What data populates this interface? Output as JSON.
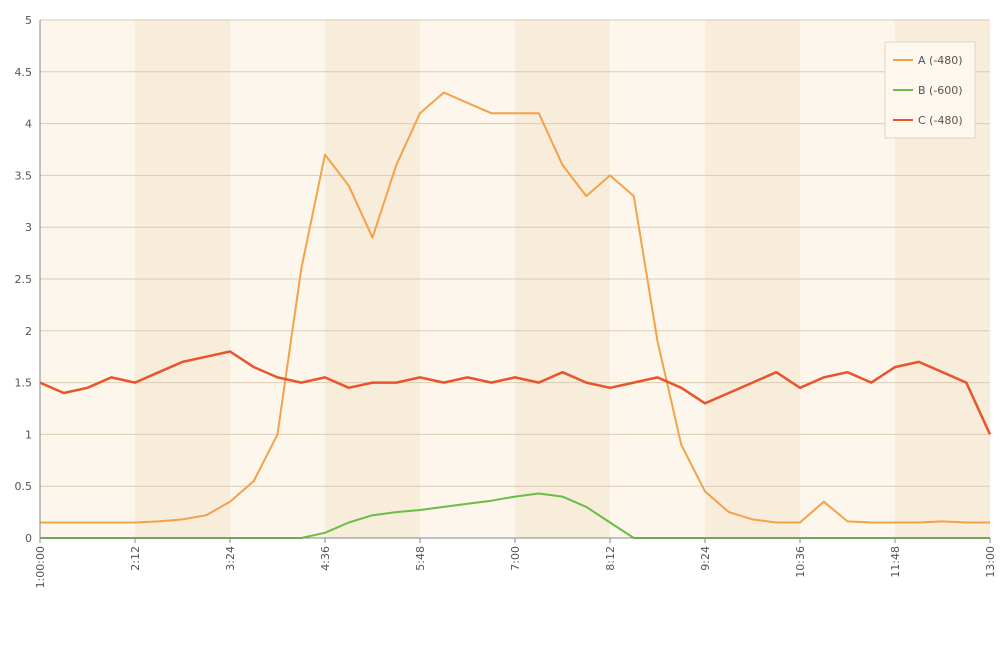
{
  "chart_data": {
    "type": "line",
    "title": "",
    "xlabel": "",
    "ylabel": "",
    "ylim": [
      0,
      5
    ],
    "yticks": [
      "0",
      "0.5",
      "1",
      "1.5",
      "2",
      "2.5",
      "3",
      "3.5",
      "4",
      "4.5",
      "5"
    ],
    "xticks": [
      "1:00:00",
      "2:12",
      "3:24",
      "4:36",
      "5:48",
      "7:00",
      "8:12",
      "9:24",
      "10:36",
      "11:48",
      "13:00"
    ],
    "grid": true,
    "legend": "top-right",
    "series": [
      {
        "name": "A (-480)",
        "color": "#f4a24a",
        "values": [
          0.15,
          0.15,
          0.15,
          0.15,
          0.15,
          0.16,
          0.18,
          0.22,
          0.35,
          0.55,
          1.0,
          2.6,
          3.7,
          3.4,
          2.9,
          3.6,
          4.1,
          4.3,
          4.2,
          4.1,
          4.1,
          4.1,
          3.6,
          3.3,
          3.5,
          3.3,
          1.9,
          0.9,
          0.45,
          0.25,
          0.18,
          0.15,
          0.15,
          0.35,
          0.16,
          0.15,
          0.15,
          0.15,
          0.16,
          0.15,
          0.15
        ]
      },
      {
        "name": "B (-600)",
        "color": "#6abe45",
        "values": [
          0,
          0,
          0,
          0,
          0,
          0,
          0,
          0,
          0,
          0,
          0,
          0,
          0.05,
          0.15,
          0.22,
          0.25,
          0.27,
          0.3,
          0.33,
          0.36,
          0.4,
          0.43,
          0.4,
          0.3,
          0.15,
          0,
          0,
          0,
          0,
          0,
          0,
          0,
          0,
          0,
          0,
          0,
          0,
          0,
          0,
          0,
          0
        ]
      },
      {
        "name": "C (-480)",
        "color": "#e8552a",
        "values": [
          1.5,
          1.4,
          1.45,
          1.55,
          1.5,
          1.6,
          1.7,
          1.75,
          1.8,
          1.65,
          1.55,
          1.5,
          1.55,
          1.45,
          1.5,
          1.5,
          1.55,
          1.5,
          1.55,
          1.5,
          1.55,
          1.5,
          1.6,
          1.5,
          1.45,
          1.5,
          1.55,
          1.45,
          1.3,
          1.4,
          1.5,
          1.6,
          1.45,
          1.55,
          1.6,
          1.5,
          1.65,
          1.7,
          1.6,
          1.5,
          1.0
        ]
      }
    ]
  }
}
